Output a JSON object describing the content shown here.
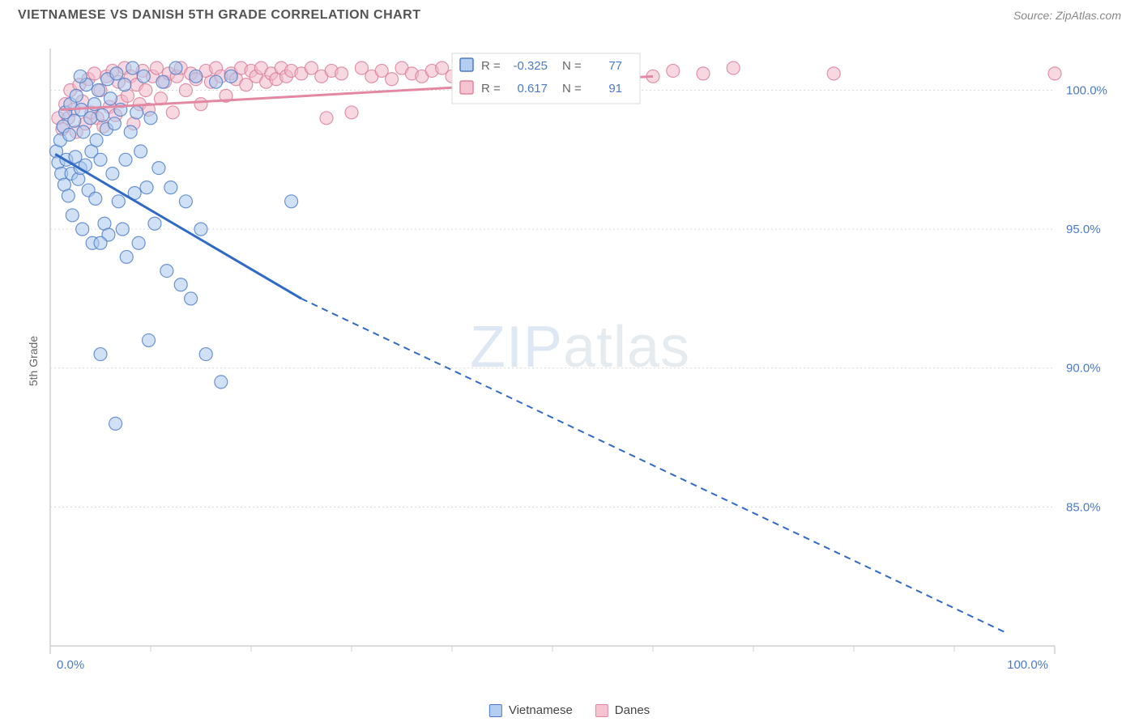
{
  "header": {
    "title": "VIETNAMESE VS DANISH 5TH GRADE CORRELATION CHART",
    "source": "Source: ZipAtlas.com"
  },
  "axes": {
    "ylabel": "5th Grade",
    "xlim": [
      0,
      100
    ],
    "ylim": [
      80,
      101.5
    ],
    "xtick_major": [
      0,
      100
    ],
    "xtick_minor": [
      10,
      20,
      30,
      40,
      50,
      60,
      70,
      80,
      90
    ],
    "xtick_labels": [
      "0.0%",
      "100.0%"
    ],
    "ytick_major": [
      85,
      90,
      95,
      100
    ],
    "ytick_labels": [
      "85.0%",
      "90.0%",
      "95.0%",
      "100.0%"
    ],
    "grid_color": "#d9d9d9",
    "axis_color": "#d0d0d0",
    "tick_label_color": "#4a7ac7",
    "background_color": "#ffffff"
  },
  "watermark": {
    "bold": "ZIP",
    "rest": "atlas"
  },
  "legend_bottom": {
    "items": [
      {
        "label": "Vietnamese",
        "fill": "#b3cef0",
        "stroke": "#4a7ac7"
      },
      {
        "label": "Danes",
        "fill": "#f5c3d2",
        "stroke": "#e2869f"
      }
    ]
  },
  "stats_box": {
    "rows": [
      {
        "swatch_fill": "#b3cef0",
        "swatch_stroke": "#4a7ac7",
        "r_label": "R =",
        "r_val": "-0.325",
        "n_label": "N =",
        "n_val": "77"
      },
      {
        "swatch_fill": "#f5c3d2",
        "swatch_stroke": "#e2869f",
        "r_label": "R =",
        "r_val": "0.617",
        "n_label": "N =",
        "n_val": "91"
      }
    ],
    "text_color": "#666666",
    "value_color": "#4a7ac7",
    "border_color": "#d8d8d8",
    "bg": "#ffffff"
  },
  "series": {
    "vietnamese": {
      "color_fill": "#a9c9ed",
      "color_stroke": "#4a7ac7",
      "marker_radius": 8,
      "opacity": 0.55,
      "trend": {
        "color": "#2f6ac5",
        "width": 3,
        "x1": 0.5,
        "y1": 97.7,
        "solid_to_x": 25,
        "solid_to_y": 92.5,
        "x2": 95,
        "y2": 80.5,
        "dash": "8 6"
      },
      "points": [
        [
          0.6,
          97.8
        ],
        [
          0.8,
          97.4
        ],
        [
          1.0,
          98.2
        ],
        [
          1.1,
          97.0
        ],
        [
          1.3,
          98.7
        ],
        [
          1.4,
          96.6
        ],
        [
          1.5,
          99.2
        ],
        [
          1.6,
          97.5
        ],
        [
          1.8,
          96.2
        ],
        [
          1.9,
          98.4
        ],
        [
          2.0,
          99.5
        ],
        [
          2.1,
          97.0
        ],
        [
          2.2,
          95.5
        ],
        [
          2.4,
          98.9
        ],
        [
          2.5,
          97.6
        ],
        [
          2.6,
          99.8
        ],
        [
          2.8,
          96.8
        ],
        [
          3.0,
          97.2
        ],
        [
          3.1,
          99.3
        ],
        [
          3.2,
          95.0
        ],
        [
          3.3,
          98.5
        ],
        [
          3.5,
          97.3
        ],
        [
          3.6,
          100.2
        ],
        [
          3.8,
          96.4
        ],
        [
          4.0,
          99.0
        ],
        [
          4.1,
          97.8
        ],
        [
          4.2,
          94.5
        ],
        [
          4.4,
          99.5
        ],
        [
          4.5,
          96.1
        ],
        [
          4.6,
          98.2
        ],
        [
          4.8,
          100.0
        ],
        [
          5.0,
          97.5
        ],
        [
          5.2,
          99.1
        ],
        [
          5.4,
          95.2
        ],
        [
          5.6,
          98.6
        ],
        [
          5.7,
          100.4
        ],
        [
          5.8,
          94.8
        ],
        [
          6.0,
          99.7
        ],
        [
          6.2,
          97.0
        ],
        [
          6.4,
          98.8
        ],
        [
          6.6,
          100.6
        ],
        [
          6.8,
          96.0
        ],
        [
          7.0,
          99.3
        ],
        [
          7.2,
          95.0
        ],
        [
          7.4,
          100.2
        ],
        [
          7.5,
          97.5
        ],
        [
          7.6,
          94.0
        ],
        [
          8.0,
          98.5
        ],
        [
          8.2,
          100.8
        ],
        [
          8.4,
          96.3
        ],
        [
          8.6,
          99.2
        ],
        [
          8.8,
          94.5
        ],
        [
          9.0,
          97.8
        ],
        [
          9.3,
          100.5
        ],
        [
          9.6,
          96.5
        ],
        [
          10.0,
          99.0
        ],
        [
          10.4,
          95.2
        ],
        [
          10.8,
          97.2
        ],
        [
          11.2,
          100.3
        ],
        [
          11.6,
          93.5
        ],
        [
          12.0,
          96.5
        ],
        [
          12.5,
          100.8
        ],
        [
          13.0,
          93.0
        ],
        [
          13.5,
          96.0
        ],
        [
          14.0,
          92.5
        ],
        [
          14.5,
          100.5
        ],
        [
          15.0,
          95.0
        ],
        [
          15.5,
          90.5
        ],
        [
          16.5,
          100.3
        ],
        [
          17.0,
          89.5
        ],
        [
          18.0,
          100.5
        ],
        [
          5.0,
          94.5
        ],
        [
          6.5,
          88.0
        ],
        [
          5.0,
          90.5
        ],
        [
          9.8,
          91.0
        ],
        [
          3.0,
          100.5
        ],
        [
          24.0,
          96.0
        ]
      ]
    },
    "danes": {
      "color_fill": "#f0b8c9",
      "color_stroke": "#d97a98",
      "marker_radius": 8,
      "opacity": 0.55,
      "trend": {
        "color": "#e388a3",
        "width": 3,
        "x1": 1,
        "y1": 99.3,
        "x2": 60,
        "y2": 100.5,
        "dash": "none"
      },
      "points": [
        [
          0.8,
          99.0
        ],
        [
          1.2,
          98.6
        ],
        [
          1.5,
          99.5
        ],
        [
          1.8,
          99.0
        ],
        [
          2.0,
          100.0
        ],
        [
          2.3,
          99.3
        ],
        [
          2.6,
          98.5
        ],
        [
          2.9,
          100.2
        ],
        [
          3.2,
          99.6
        ],
        [
          3.5,
          98.8
        ],
        [
          3.8,
          100.4
        ],
        [
          4.1,
          99.2
        ],
        [
          4.4,
          100.6
        ],
        [
          4.7,
          99.0
        ],
        [
          5.0,
          100.0
        ],
        [
          5.3,
          98.7
        ],
        [
          5.6,
          100.5
        ],
        [
          5.9,
          99.4
        ],
        [
          6.2,
          100.7
        ],
        [
          6.5,
          99.1
        ],
        [
          6.8,
          100.3
        ],
        [
          7.1,
          99.6
        ],
        [
          7.4,
          100.8
        ],
        [
          7.7,
          99.8
        ],
        [
          8.0,
          100.5
        ],
        [
          8.3,
          98.8
        ],
        [
          8.6,
          100.2
        ],
        [
          8.9,
          99.5
        ],
        [
          9.2,
          100.7
        ],
        [
          9.5,
          100.0
        ],
        [
          9.8,
          99.3
        ],
        [
          10.2,
          100.5
        ],
        [
          10.6,
          100.8
        ],
        [
          11.0,
          99.7
        ],
        [
          11.4,
          100.3
        ],
        [
          11.8,
          100.6
        ],
        [
          12.2,
          99.2
        ],
        [
          12.6,
          100.5
        ],
        [
          13.0,
          100.8
        ],
        [
          13.5,
          100.0
        ],
        [
          14.0,
          100.6
        ],
        [
          14.5,
          100.4
        ],
        [
          15.0,
          99.5
        ],
        [
          15.5,
          100.7
        ],
        [
          16.0,
          100.3
        ],
        [
          16.5,
          100.8
        ],
        [
          17.0,
          100.5
        ],
        [
          17.5,
          99.8
        ],
        [
          18.0,
          100.6
        ],
        [
          18.5,
          100.4
        ],
        [
          19.0,
          100.8
        ],
        [
          19.5,
          100.2
        ],
        [
          20.0,
          100.7
        ],
        [
          20.5,
          100.5
        ],
        [
          21.0,
          100.8
        ],
        [
          21.5,
          100.3
        ],
        [
          22.0,
          100.6
        ],
        [
          22.5,
          100.4
        ],
        [
          23.0,
          100.8
        ],
        [
          23.5,
          100.5
        ],
        [
          24.0,
          100.7
        ],
        [
          25.0,
          100.6
        ],
        [
          26.0,
          100.8
        ],
        [
          27.0,
          100.5
        ],
        [
          27.5,
          99.0
        ],
        [
          28.0,
          100.7
        ],
        [
          29.0,
          100.6
        ],
        [
          30.0,
          99.2
        ],
        [
          31.0,
          100.8
        ],
        [
          32.0,
          100.5
        ],
        [
          33.0,
          100.7
        ],
        [
          34.0,
          100.4
        ],
        [
          35.0,
          100.8
        ],
        [
          36.0,
          100.6
        ],
        [
          37.0,
          100.5
        ],
        [
          38.0,
          100.7
        ],
        [
          39.0,
          100.8
        ],
        [
          40.0,
          100.5
        ],
        [
          42.0,
          100.7
        ],
        [
          44.0,
          100.6
        ],
        [
          46.0,
          100.8
        ],
        [
          48.0,
          100.5
        ],
        [
          50.0,
          100.7
        ],
        [
          53.0,
          100.6
        ],
        [
          56.0,
          100.8
        ],
        [
          60.0,
          100.5
        ],
        [
          62.0,
          100.7
        ],
        [
          65.0,
          100.6
        ],
        [
          68.0,
          100.8
        ],
        [
          78.0,
          100.6
        ],
        [
          100.0,
          100.6
        ]
      ]
    }
  }
}
